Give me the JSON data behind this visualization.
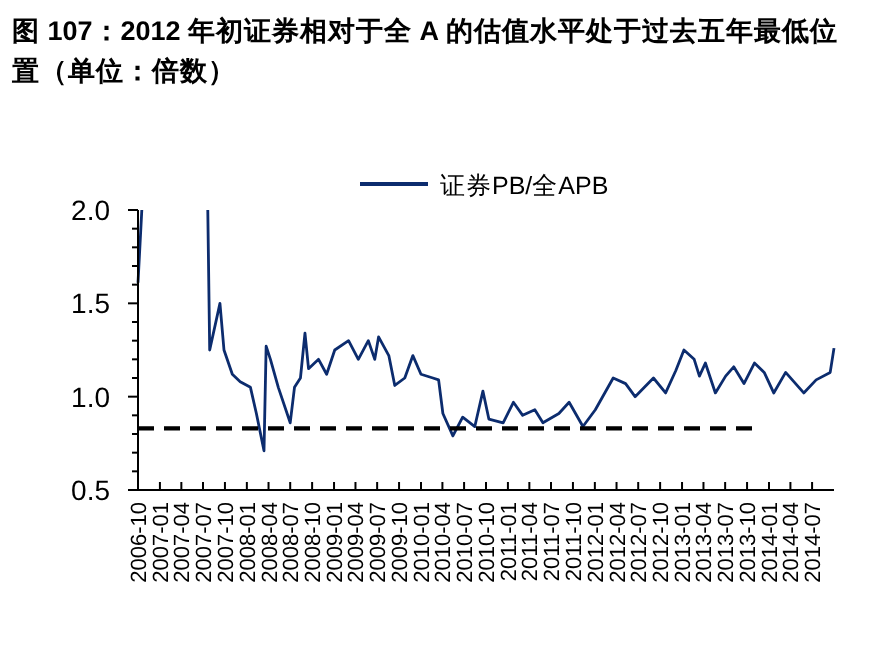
{
  "chart_data": {
    "type": "line",
    "title": "图 107：2012 年初证券相对于全 A 的估值水平处于过去五年最低位置（单位：倍数）",
    "series": [
      {
        "name": "证券PB/全APB",
        "color": "#0c2c6e",
        "x": [
          "2006-10-01",
          "2006-10-17",
          "2007-03-01",
          "2007-07-21",
          "2007-07-29",
          "2007-09-10",
          "2007-09-27",
          "2007-11-01",
          "2007-12-04",
          "2008-01-16",
          "2008-02-10",
          "2008-03-13",
          "2008-03-22",
          "2008-04-09",
          "2008-05-12",
          "2008-07-01",
          "2008-07-19",
          "2008-08-13",
          "2008-09-01",
          "2008-09-16",
          "2008-10-28",
          "2008-12-01",
          "2009-01-04",
          "2009-03-03",
          "2009-04-13",
          "2009-05-25",
          "2009-06-21",
          "2009-07-07",
          "2009-08-19",
          "2009-09-13",
          "2009-10-25",
          "2009-11-28",
          "2010-01-01",
          "2010-02-20",
          "2010-03-16",
          "2010-04-03",
          "2010-05-15",
          "2010-06-25",
          "2010-08-15",
          "2010-09-18",
          "2010-10-13",
          "2010-12-12",
          "2011-01-24",
          "2011-03-04",
          "2011-04-24",
          "2011-05-28",
          "2011-08-03",
          "2011-09-15",
          "2011-11-12",
          "2012-01-03",
          "2012-03-18",
          "2012-05-09",
          "2012-06-18",
          "2012-09-03",
          "2012-10-24",
          "2012-12-06",
          "2013-01-09",
          "2013-02-21",
          "2013-03-15",
          "2013-04-09",
          "2013-05-21",
          "2013-07-03",
          "2013-08-06",
          "2013-09-18",
          "2013-11-01",
          "2013-12-12",
          "2014-01-21",
          "2014-03-12",
          "2014-05-27",
          "2014-07-18",
          "2014-09-15",
          "2014-10-01"
        ],
        "values": [
          1.61,
          2.0,
          null,
          2.0,
          1.25,
          1.5,
          1.25,
          1.12,
          1.08,
          1.05,
          0.91,
          0.71,
          1.27,
          1.2,
          1.05,
          0.86,
          1.05,
          1.1,
          1.34,
          1.15,
          1.2,
          1.12,
          1.25,
          1.3,
          1.2,
          1.3,
          1.2,
          1.32,
          1.22,
          1.06,
          1.1,
          1.22,
          1.12,
          1.1,
          1.09,
          0.91,
          0.79,
          0.89,
          0.84,
          1.03,
          0.88,
          0.86,
          0.97,
          0.9,
          0.93,
          0.86,
          0.91,
          0.97,
          0.84,
          0.93,
          1.1,
          1.07,
          1.0,
          1.1,
          1.02,
          1.14,
          1.25,
          1.2,
          1.11,
          1.18,
          1.02,
          1.11,
          1.16,
          1.07,
          1.18,
          1.13,
          1.02,
          1.13,
          1.02,
          1.09,
          1.13,
          1.26
        ]
      },
      {
        "color": "#000000",
        "line_style": "dashed",
        "x": [
          "2006-10-01",
          "2013-11-01"
        ],
        "values": [
          0.83,
          0.83
        ]
      }
    ],
    "xlim": [
      "2006-10",
      "2014-10"
    ],
    "xticks": [
      "2006-10",
      "2007-01",
      "2007-04",
      "2007-07",
      "2007-10",
      "2008-01",
      "2008-04",
      "2008-07",
      "2008-10",
      "2009-01",
      "2009-04",
      "2009-07",
      "2009-10",
      "2010-01",
      "2010-04",
      "2010-07",
      "2010-10",
      "2011-01",
      "2011-04",
      "2011-07",
      "2011-10",
      "2012-01",
      "2012-04",
      "2012-07",
      "2012-10",
      "2013-01",
      "2013-04",
      "2013-07",
      "2013-10",
      "2014-01",
      "2014-04",
      "2014-07"
    ],
    "ylim": [
      0.5,
      2.0
    ],
    "yticks": [
      {
        "value": 0.5,
        "label": "0.5"
      },
      {
        "value": 0.6,
        "label": null
      },
      {
        "value": 0.7,
        "label": null
      },
      {
        "value": 0.8,
        "label": null
      },
      {
        "value": 0.9,
        "label": null
      },
      {
        "value": 1,
        "label": "1.0"
      },
      {
        "value": 1.1,
        "label": null
      },
      {
        "value": 1.2,
        "label": null
      },
      {
        "value": 1.3,
        "label": null
      },
      {
        "value": 1.4,
        "label": null
      },
      {
        "value": 1.5,
        "label": "1.5"
      },
      {
        "value": 1.6,
        "label": null
      },
      {
        "value": 1.7,
        "label": null
      },
      {
        "value": 1.8,
        "label": null
      },
      {
        "value": 1.9,
        "label": null
      },
      {
        "value": 2,
        "label": "2.0"
      }
    ],
    "legend": "top right",
    "grid": false
  }
}
